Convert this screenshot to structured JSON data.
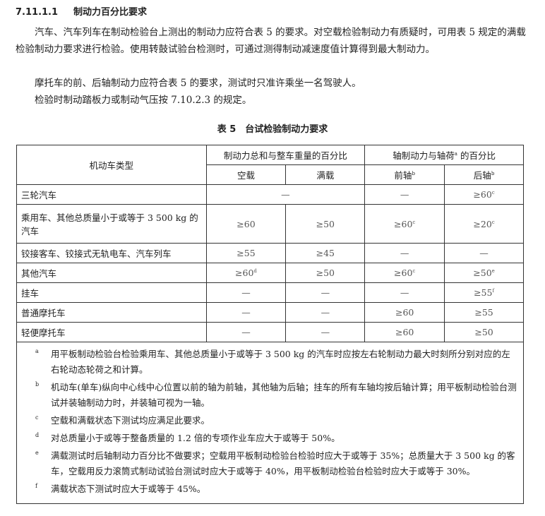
{
  "section": {
    "number": "7.11.1.1",
    "title": "制动力百分比要求"
  },
  "paragraphs": [
    "汽车、汽车列车在制动检验台上测出的制动力应符合表 5 的要求。对空载检验制动力有质疑时，可用表 5 规定的满载检验制动力要求进行检验。使用转鼓试验台检测时，可通过测得制动减速度值计算得到最大制动力。",
    "摩托车的前、后轴制动力应符合表 5 的要求，测试时只准许乘坐一名驾驶人。",
    "检验时制动踏板力或制动气压按 7.10.2.3 的规定。"
  ],
  "table": {
    "caption": "表 5　台试检验制动力要求",
    "header": {
      "type": "机动车类型",
      "group1": "制动力总和与整车重量的百分比",
      "group2": "轴制动力与轴荷",
      "group2_sup": "a",
      "group2_suffix": " 的百分比",
      "empty": "空载",
      "full": "满载",
      "front": "前轴",
      "front_sup": "b",
      "rear": "后轴",
      "rear_sup": "b"
    },
    "rows": [
      {
        "type": "三轮汽车",
        "merged": "—",
        "front": "—",
        "rear": "≥60",
        "rear_sup": "c"
      },
      {
        "type": "乘用车、其他总质量小于或等于 3 500 kg 的汽车",
        "empty": "≥60",
        "full": "≥50",
        "front": "≥60",
        "front_sup": "c",
        "rear": "≥20",
        "rear_sup": "c"
      },
      {
        "type": "铰接客车、铰接式无轨电车、汽车列车",
        "empty": "≥55",
        "full": "≥45",
        "front": "—",
        "rear": "—"
      },
      {
        "type": "其他汽车",
        "empty": "≥60",
        "empty_sup": "d",
        "full": "≥50",
        "front": "≥60",
        "front_sup": "c",
        "rear": "≥50",
        "rear_sup": "e"
      },
      {
        "type": "挂车",
        "empty": "—",
        "full": "—",
        "front": "—",
        "rear": "≥55",
        "rear_sup": "f"
      },
      {
        "type": "普通摩托车",
        "empty": "—",
        "full": "—",
        "front": "≥60",
        "rear": "≥55"
      },
      {
        "type": "轻便摩托车",
        "empty": "—",
        "full": "—",
        "front": "≥60",
        "rear": "≥50"
      }
    ],
    "notes": [
      {
        "mark": "a",
        "text": "用平板制动检验台检验乘用车、其他总质量小于或等于 3 500 kg 的汽车时应按左右轮制动力最大时刻所分别对应的左右轮动态轮荷之和计算。"
      },
      {
        "mark": "b",
        "text": "机动车(单车)纵向中心线中心位置以前的轴为前轴，其他轴为后轴；挂车的所有车轴均按后轴计算；用平板制动检验台测试并装轴制动力时，并装轴可视为一轴。"
      },
      {
        "mark": "c",
        "text": "空载和满载状态下测试均应满足此要求。"
      },
      {
        "mark": "d",
        "text": "对总质量小于或等于整备质量的 1.2 倍的专项作业车应大于或等于 50%。"
      },
      {
        "mark": "e",
        "text": "满载测试时后轴制动力百分比不做要求；空载用平板制动检验台检验时应大于或等于 35%；总质量大于 3 500 kg 的客车，空载用反力滚筒式制动试验台测试时应大于或等于 40%，用平板制动检验台检验时应大于或等于 30%。"
      },
      {
        "mark": "f",
        "text": "满载状态下测试时应大于或等于 45%。"
      }
    ]
  }
}
